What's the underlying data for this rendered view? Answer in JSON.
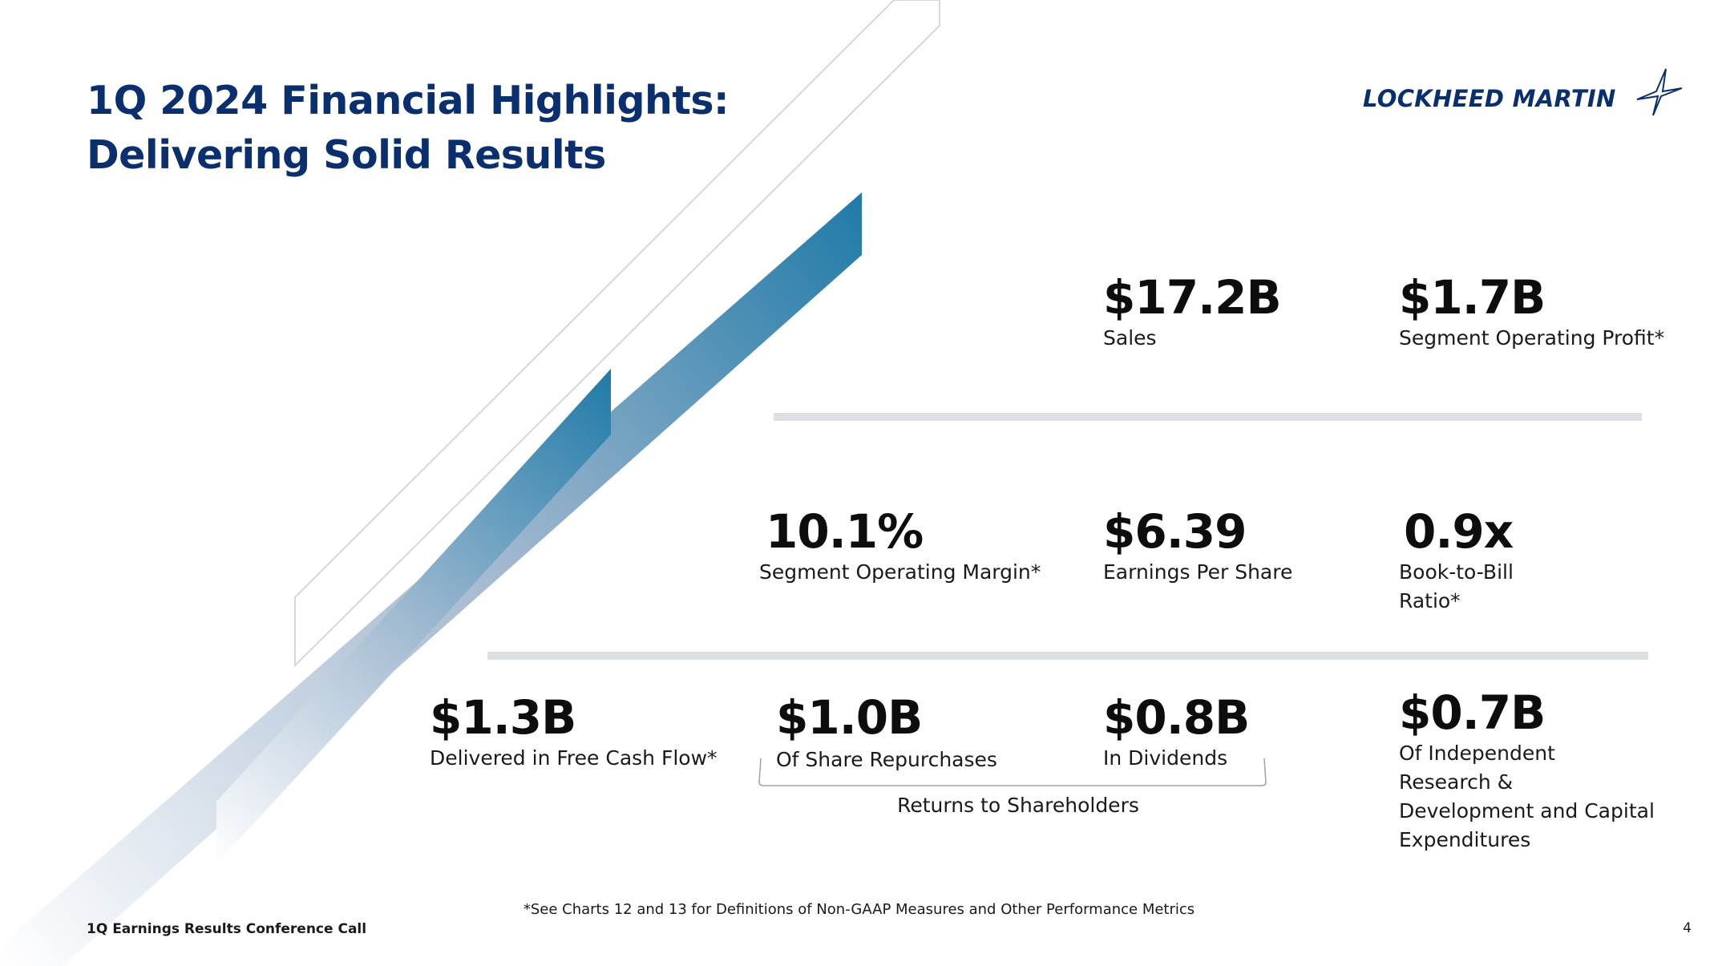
{
  "header": {
    "title_line1": "1Q 2024 Financial Highlights:",
    "title_line2": "Delivering Solid Results"
  },
  "logo": {
    "text": "LOCKHEED MARTIN",
    "icon": "star-icon",
    "color": "#0a2f6e"
  },
  "metrics": {
    "sales": {
      "value": "$17.2B",
      "label": "Sales"
    },
    "segment_operating_profit": {
      "value": "$1.7B",
      "label": "Segment Operating Profit*"
    },
    "segment_operating_margin": {
      "value": "10.1%",
      "label": "Segment Operating Margin*"
    },
    "eps": {
      "value": "$6.39",
      "label": "Earnings Per Share"
    },
    "book_to_bill": {
      "value": "0.9x",
      "label_line1": "Book-to-Bill",
      "label_line2": "Ratio*"
    },
    "free_cash_flow": {
      "value": "$1.3B",
      "label": "Delivered in Free Cash Flow*"
    },
    "share_repurchases": {
      "value": "$1.0B",
      "label": "Of Share Repurchases"
    },
    "dividends": {
      "value": "$0.8B",
      "label": "In Dividends"
    },
    "ird_capex": {
      "value": "$0.7B",
      "label_lines": [
        "Of Independent",
        "Research &",
        "Development and Capital",
        "Expenditures"
      ]
    }
  },
  "returns_label": "Returns to Shareholders",
  "footnote": "*See Charts 12 and 13 for Definitions of Non-GAAP Measures and Other Performance Metrics",
  "footer": {
    "text": "1Q Earnings Results Conference Call",
    "page_number": "4"
  },
  "colors": {
    "title": "#0a2f6e",
    "accent_blue": "#1d7aa8",
    "rule": "#dde0e4"
  }
}
